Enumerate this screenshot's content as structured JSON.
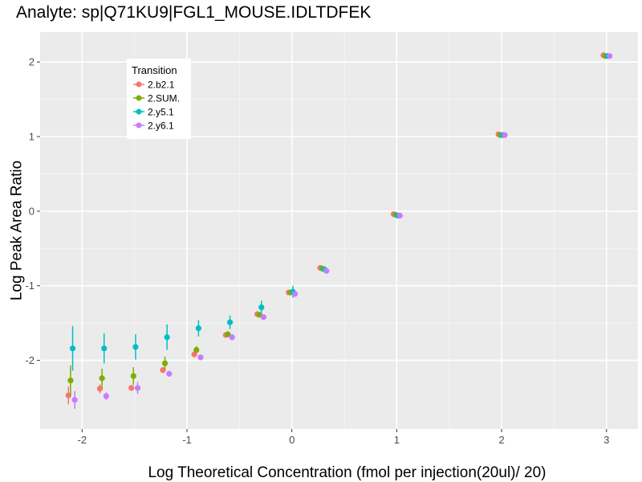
{
  "chart_data": {
    "type": "scatter",
    "title": "Analyte: sp|Q71KU9|FGL1_MOUSE.IDLTDFEK",
    "xlabel": "Log Theoretical Concentration (fmol per injection(20ul)/ 20)",
    "ylabel": "Log Peak Area Ratio",
    "xlim": [
      -2.4,
      3.3
    ],
    "ylim": [
      -2.92,
      2.4
    ],
    "x_ticks": [
      -2,
      -1,
      0,
      1,
      2,
      3
    ],
    "x_tick_labels": [
      "-2",
      "-1",
      "0",
      "1",
      "2",
      "3"
    ],
    "y_ticks": [
      -2,
      -1,
      0,
      1,
      2
    ],
    "y_tick_labels": [
      "-2",
      "-1",
      "0",
      "1",
      "2"
    ],
    "grid": true,
    "legend": {
      "title": "Transition",
      "position": "top-left"
    },
    "x": [
      -2.1,
      -1.8,
      -1.5,
      -1.2,
      -0.9,
      -0.6,
      -0.3,
      0,
      0.3,
      1,
      2,
      3
    ],
    "series": [
      {
        "name": "2.b2.1",
        "color": "#F8766D",
        "values": [
          -2.47,
          -2.38,
          -2.37,
          -2.13,
          -1.92,
          -1.66,
          -1.38,
          -1.09,
          -0.76,
          -0.04,
          1.03,
          2.09
        ],
        "err": [
          0.12,
          0.06,
          0.03,
          0.03,
          0.03,
          0.03,
          0.02,
          0.02,
          0.01,
          0.01,
          0.0,
          0.0
        ]
      },
      {
        "name": "2.SUM.",
        "color": "#7CAE00",
        "values": [
          -2.27,
          -2.24,
          -2.21,
          -2.04,
          -1.86,
          -1.65,
          -1.39,
          -1.09,
          -0.77,
          -0.05,
          1.02,
          2.08
        ],
        "err": [
          0.2,
          0.13,
          0.12,
          0.09,
          0.05,
          0.04,
          0.02,
          0.02,
          0.01,
          0.01,
          0.0,
          0.0
        ]
      },
      {
        "name": "2.y5.1",
        "color": "#00BFC4",
        "values": [
          -1.84,
          -1.84,
          -1.82,
          -1.69,
          -1.57,
          -1.49,
          -1.29,
          -1.08,
          -0.78,
          -0.06,
          1.02,
          2.08
        ],
        "err": [
          0.3,
          0.2,
          0.17,
          0.17,
          0.11,
          0.09,
          0.09,
          0.08,
          0.02,
          0.01,
          0.0,
          0.0
        ]
      },
      {
        "name": "2.y6.1",
        "color": "#C77CFF",
        "values": [
          -2.53,
          -2.48,
          -2.37,
          -2.18,
          -1.96,
          -1.69,
          -1.42,
          -1.11,
          -0.8,
          -0.06,
          1.02,
          2.08
        ],
        "err": [
          0.12,
          0.05,
          0.08,
          0.03,
          0.03,
          0.04,
          0.02,
          0.02,
          0.02,
          0.01,
          0.0,
          0.0
        ]
      }
    ],
    "dodge": [
      -0.03,
      -0.01,
      0.01,
      0.03
    ]
  }
}
